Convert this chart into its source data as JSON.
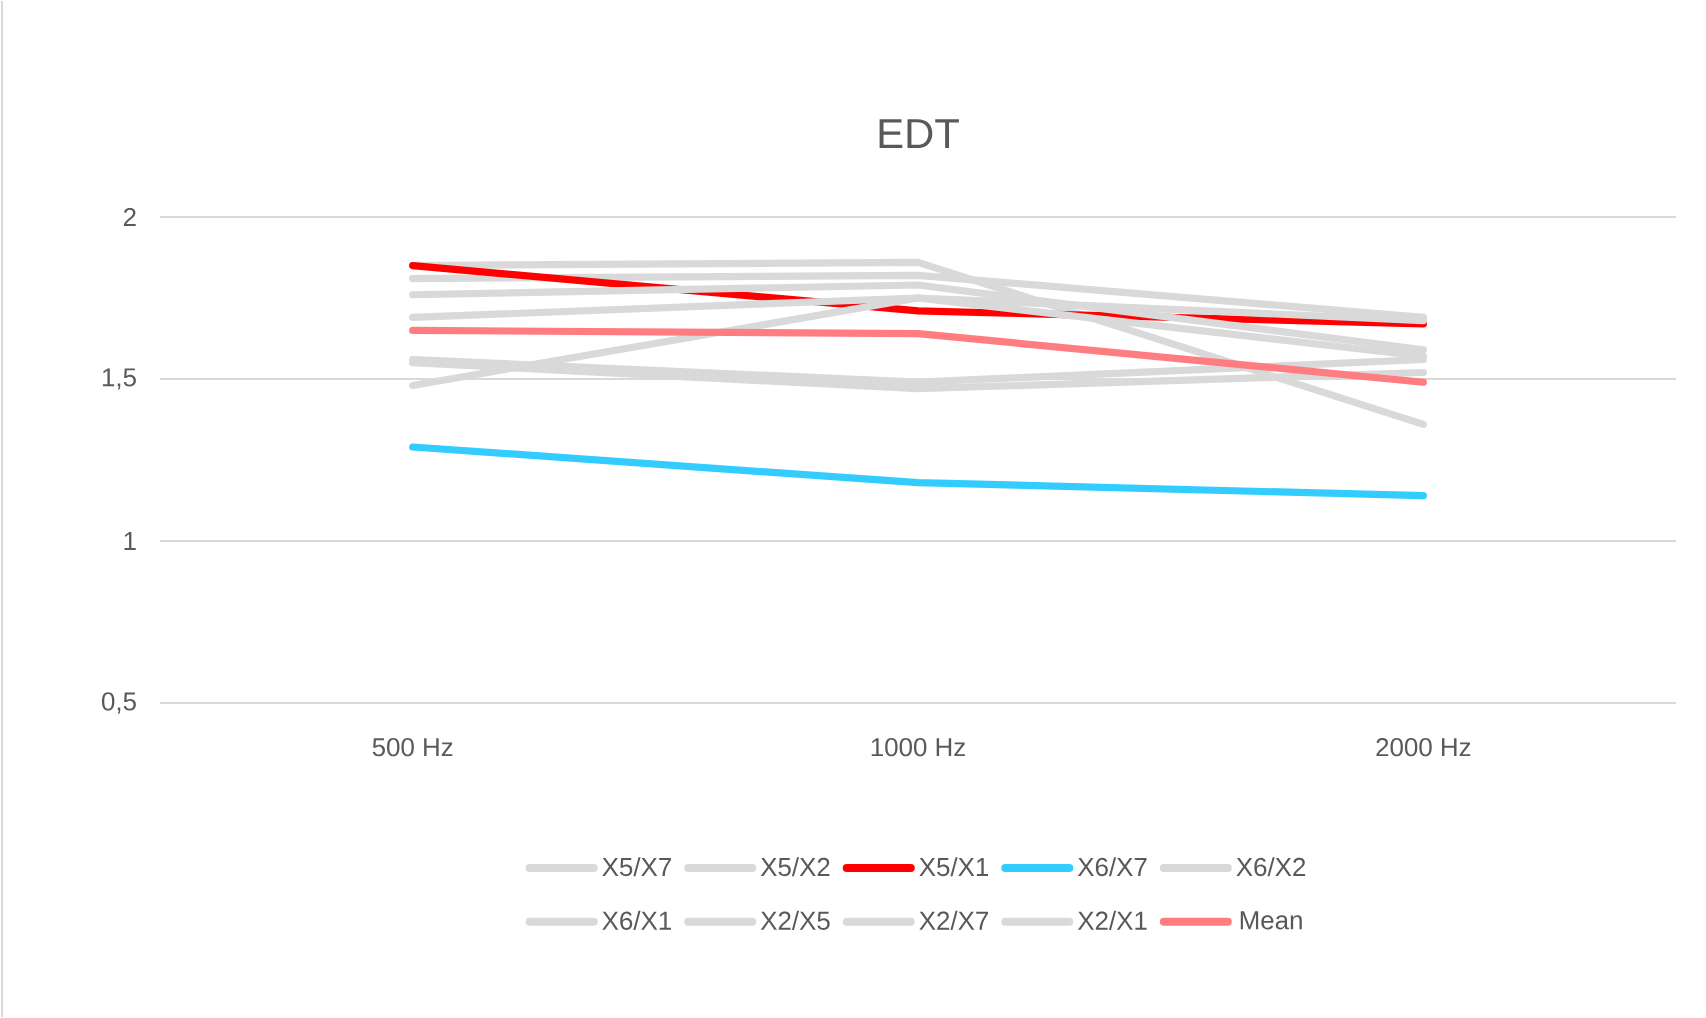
{
  "chart_data": {
    "type": "line",
    "title": "EDT",
    "categories": [
      "500 Hz",
      "1000 Hz",
      "2000 Hz"
    ],
    "series": [
      {
        "name": "X5/X7",
        "color": "#d9d9d9",
        "values": [
          1.85,
          1.86,
          1.36
        ]
      },
      {
        "name": "X5/X2",
        "color": "#d9d9d9",
        "values": [
          1.81,
          1.82,
          1.69
        ]
      },
      {
        "name": "X5/X1",
        "color": "#ff0000",
        "values": [
          1.85,
          1.71,
          1.67
        ]
      },
      {
        "name": "X6/X7",
        "color": "#33ccff",
        "values": [
          1.29,
          1.18,
          1.14
        ]
      },
      {
        "name": "X6/X2",
        "color": "#d9d9d9",
        "values": [
          1.76,
          1.79,
          1.59
        ]
      },
      {
        "name": "X6/X1",
        "color": "#d9d9d9",
        "values": [
          1.69,
          1.75,
          1.57
        ]
      },
      {
        "name": "X2/X5",
        "color": "#d9d9d9",
        "values": [
          1.56,
          1.49,
          1.56
        ]
      },
      {
        "name": "X2/X7",
        "color": "#d9d9d9",
        "values": [
          1.55,
          1.47,
          1.52
        ]
      },
      {
        "name": "X2/X1",
        "color": "#d9d9d9",
        "values": [
          1.48,
          1.75,
          1.68
        ]
      },
      {
        "name": "Mean",
        "color": "#ff7c80",
        "values": [
          1.65,
          1.64,
          1.49
        ]
      }
    ],
    "ylim": [
      0.5,
      2
    ],
    "yticks": [
      {
        "value": 0.5,
        "label": "0,5"
      },
      {
        "value": 1,
        "label": "1"
      },
      {
        "value": 1.5,
        "label": "1,5"
      },
      {
        "value": 2,
        "label": "2"
      }
    ],
    "grid": "y",
    "legend": "bottom",
    "marker": "none",
    "line_style": "solid"
  }
}
